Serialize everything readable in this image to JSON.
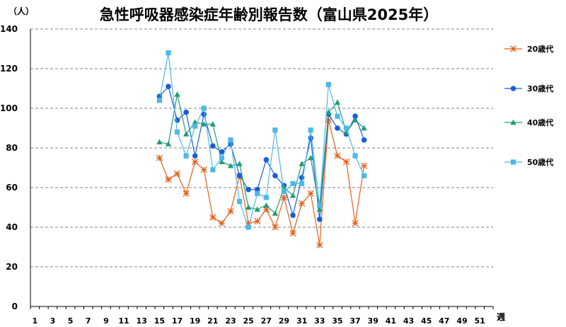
{
  "chart_data": {
    "type": "line",
    "title": "急性呼吸器感染症年齢別報告数（富山県2025年）",
    "ylabel": "（人）",
    "xlabel": "週",
    "ylim": [
      0,
      140
    ],
    "yticks": [
      0,
      20,
      40,
      60,
      80,
      100,
      120,
      140
    ],
    "xlim": [
      1,
      52
    ],
    "xticks": [
      1,
      3,
      5,
      7,
      9,
      11,
      13,
      15,
      17,
      19,
      21,
      23,
      25,
      27,
      29,
      31,
      33,
      35,
      37,
      39,
      41,
      43,
      45,
      47,
      49,
      51
    ],
    "grid": "horizontal dashed",
    "legend_position": "right",
    "series": [
      {
        "name": "20歳代",
        "color": "#E35F1A",
        "marker": "star",
        "x": [
          15,
          16,
          17,
          18,
          19,
          20,
          21,
          22,
          23,
          24,
          25,
          26,
          27,
          28,
          29,
          30,
          31,
          32,
          33,
          34,
          35,
          36,
          37,
          38
        ],
        "values": [
          75,
          64,
          67,
          57,
          73,
          69,
          45,
          42,
          48,
          66,
          42,
          43,
          49,
          40,
          55,
          37,
          52,
          57,
          31,
          94,
          76,
          73,
          42,
          71
        ]
      },
      {
        "name": "30歳代",
        "color": "#1A5ED6",
        "marker": "circle",
        "x": [
          15,
          16,
          17,
          18,
          19,
          20,
          21,
          22,
          23,
          24,
          25,
          26,
          27,
          28,
          29,
          30,
          31,
          32,
          33,
          34,
          35,
          36,
          37,
          38
        ],
        "values": [
          106,
          111,
          94,
          98,
          76,
          97,
          81,
          78,
          82,
          66,
          59,
          59,
          74,
          66,
          61,
          46,
          65,
          85,
          44,
          97,
          90,
          87,
          96,
          84
        ]
      },
      {
        "name": "40歳代",
        "color": "#1F9E73",
        "marker": "triangle",
        "x": [
          15,
          16,
          17,
          18,
          19,
          20,
          21,
          22,
          23,
          24,
          25,
          26,
          27,
          28,
          29,
          30,
          31,
          32,
          33,
          34,
          35,
          36,
          37,
          38
        ],
        "values": [
          83,
          82,
          107,
          87,
          93,
          92,
          92,
          73,
          71,
          72,
          50,
          49,
          51,
          47,
          60,
          56,
          72,
          75,
          49,
          98,
          103,
          88,
          94,
          90
        ]
      },
      {
        "name": "50歳代",
        "color": "#4DB8E8",
        "marker": "square",
        "x": [
          15,
          16,
          17,
          18,
          19,
          20,
          21,
          22,
          23,
          24,
          25,
          26,
          27,
          28,
          29,
          30,
          31,
          32,
          33,
          34,
          35,
          36,
          37,
          38
        ],
        "values": [
          104,
          128,
          88,
          76,
          91,
          100,
          69,
          75,
          84,
          53,
          40,
          57,
          55,
          89,
          58,
          62,
          62,
          89,
          51,
          112,
          96,
          90,
          76,
          66
        ]
      }
    ]
  }
}
